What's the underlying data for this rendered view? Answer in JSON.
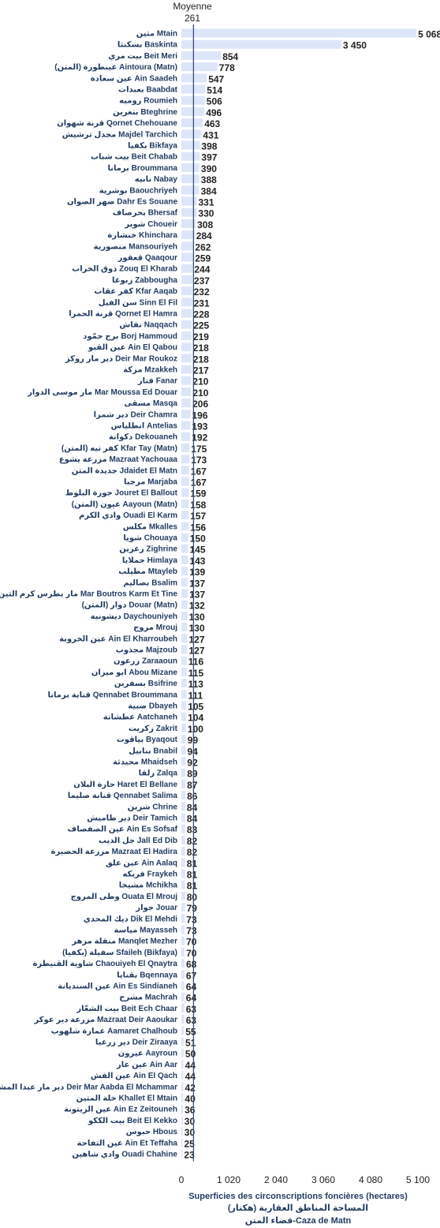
{
  "chart_data": {
    "type": "bar",
    "orientation": "horizontal",
    "categories": [
      "متين Mtain",
      "بسكنتا Baskinta",
      "بيت مري Beit Meri",
      "عينطورة (المتن) Aintoura (Matn)",
      "عين سعادة Ain Saadeh",
      "بعبدات Baabdat",
      "روميه Roumieh",
      "بتغرين Bteghrine",
      "قرنة شهوان Qornet Chehouane",
      "مجدل ترشيش Majdel Tarchich",
      "بكفيا Bikfaya",
      "بيت شباب Beit Chabab",
      "برمانا Broummana",
      "نابيه Nabay",
      "بوشرية Baouchriyeh",
      "ضهر الصوان Dahr Es Souane",
      "بحرصاف Bhersaf",
      "شوير Choueir",
      "خنشارة Khinchara",
      "منصورية Mansouriyeh",
      "قعقور Qaaqour",
      "ذوق الخراب Zouq El Kharab",
      "زبوغا Zabbougha",
      "كفر عقاب Kfar Aaqab",
      "سن الفيل Sinn El Fil",
      "قرنة الحمرا Qornet El Hamra",
      "نقاش Naqqach",
      "برج حمّود Borj Hammoud",
      "عين القبو Ain El Qabou",
      "دير مار روكز Deir Mar Roukoz",
      "مزكة Mzakkeh",
      "فنار Fanar",
      "مار موسى الدوار Mar Moussa Ed Douar",
      "مسقى Masqa",
      "دير شمرا Deir Chamra",
      "انطلياس Antelias",
      "دكوانة Dekouaneh",
      "كفر تيه (المتن) Kfar Tay (Matn)",
      "مزرعة يشوع Mazraat Yachouaa",
      "جديدة المتن Jdaidet El Matn",
      "مرجبا Marjaba",
      "جورة البلوط Jouret El Ballout",
      "عيون (المتن) Aayoun (Matn)",
      "وادي الكرم Ouadi El Karm",
      "مكلس Mkalles",
      "شويا Chouaya",
      "زغرين Zighrine",
      "حملايا Himlaya",
      "مطيلب Mtayleb",
      "بصاليم Bsalim",
      "مار بطرس كرم التين Mar Boutros Karm Et Tine",
      "دوار (المتن) Douar (Matn)",
      "ديشونية Daychouniyeh",
      "مروج Mrouj",
      "عين الخروبة Ain El Kharroubeh",
      "مجذوب Majzoub",
      "زرعون Zaraaoun",
      "ابو ميزان Abou Mizane",
      "بسفرين Bsifrine",
      "قنابة برمانا Qennabet Broummana",
      "ضبية Dbayeh",
      "عطشانة Aatchaneh",
      "زكريت Zakrit",
      "بياقوت Byaqout",
      "بنابيل Bnabil",
      "محيدثة Mhaidseh",
      "زلقا Zalqa",
      "حارة البلان Haret El Bellane",
      "قنابة صليما Qennabet Salima",
      "شرين Chrine",
      "دير طاميش Deir Tamich",
      "عين الصفصاف Ain Es Sofsaf",
      "جل الديب Jall Ed Dib",
      "مزرعة الحضيرة Mazraat El Hadira",
      "عين علق Ain Aalaq",
      "فريكه Fraykeh",
      "مشيخا Mchikha",
      "وطى المروج Ouata El Mrouj",
      "جوار Jouar",
      "ديك المحدي Dik El Mehdi",
      "مياسة Mayasseh",
      "منقلة مزهر Manqlet Mezher",
      "سفيلة (بكفيا) Sfaileh (Bikfaya)",
      "شاوية القنيطرة Chaouiyeh El Qnaytra",
      "بقنايا Bqennaya",
      "عين السنديانة Ain Es Sindianeh",
      "مشرح Machrah",
      "بيت الشعّار Beit Ech Chaar",
      "مزرعة دير عوكر Mazraat Deir Aaoukar",
      "عمارة شلهوب Aamaret Chalhoub",
      "دير زرعيا Deir Ziraaya",
      "عيرون Aayroun",
      "عين عار Ain Aar",
      "عين القش Ain El Qach",
      "دير مار عبدا المشمر Deir Mar Aabda El Mchammar",
      "خلة المتين Khallet El Mtain",
      "عين الزيتونة Ain Ez Zeitouneh",
      "بيت الككو Beit El Kekko",
      "حبوس Hbous",
      "عين التفاحة Ain Et Teffaha",
      "وادي شاهين Ouadi Chahine"
    ],
    "values": [
      5068,
      3450,
      854,
      778,
      547,
      514,
      506,
      496,
      463,
      431,
      398,
      397,
      390,
      388,
      384,
      331,
      330,
      308,
      284,
      262,
      259,
      244,
      237,
      232,
      231,
      228,
      225,
      219,
      218,
      218,
      217,
      210,
      210,
      206,
      196,
      193,
      192,
      175,
      173,
      167,
      167,
      159,
      158,
      157,
      156,
      150,
      145,
      143,
      139,
      137,
      137,
      132,
      130,
      130,
      127,
      127,
      116,
      115,
      113,
      111,
      105,
      104,
      100,
      99,
      94,
      92,
      89,
      87,
      86,
      84,
      84,
      83,
      82,
      82,
      81,
      81,
      81,
      80,
      79,
      73,
      73,
      70,
      70,
      68,
      67,
      64,
      64,
      63,
      63,
      55,
      51,
      50,
      44,
      44,
      42,
      40,
      36,
      30,
      30,
      25,
      23
    ],
    "value_labels": [
      "5 068",
      "3 450",
      "854",
      "778",
      "547",
      "514",
      "506",
      "496",
      "463",
      "431",
      "398",
      "397",
      "390",
      "388",
      "384",
      "331",
      "330",
      "308",
      "284",
      "262",
      "259",
      "244",
      "237",
      "232",
      "231",
      "228",
      "225",
      "219",
      "218",
      "218",
      "217",
      "210",
      "210",
      "206",
      "196",
      "193",
      "192",
      "175",
      "173",
      "167",
      "167",
      "159",
      "158",
      "157",
      "156",
      "150",
      "145",
      "143",
      "139",
      "137",
      "137",
      "132",
      "130",
      "130",
      "127",
      "127",
      "116",
      "115",
      "113",
      "111",
      "105",
      "104",
      "100",
      "99",
      "94",
      "92",
      "89",
      "87",
      "86",
      "84",
      "84",
      "83",
      "82",
      "82",
      "81",
      "81",
      "81",
      "80",
      "79",
      "73",
      "73",
      "70",
      "70",
      "68",
      "67",
      "64",
      "64",
      "63",
      "63",
      "55",
      "51",
      "50",
      "44",
      "44",
      "42",
      "40",
      "36",
      "30",
      "30",
      "25",
      "23"
    ],
    "average": {
      "label": "Moyenne",
      "value": 261,
      "value_label": "261"
    },
    "x_ticks": [
      {
        "value": 0,
        "label": "0"
      },
      {
        "value": 1020,
        "label": "1 020"
      },
      {
        "value": 2040,
        "label": "2 040"
      },
      {
        "value": 3060,
        "label": "3 060"
      },
      {
        "value": 4080,
        "label": "4 080"
      },
      {
        "value": 5100,
        "label": "5 100"
      }
    ],
    "xlim": [
      0,
      5100
    ],
    "xlabel_lines": [
      "Superficies des circonscriptions foncières (hectares)",
      "المساحة المناطق العقارية (هكتار)",
      "قضاء المتن-Caza de Matn"
    ],
    "grid": false,
    "colors": {
      "bar": "#dde6f9",
      "average_line": "#3a4f73",
      "category_text": "#1f3a5f",
      "value_text": "#222222"
    }
  }
}
